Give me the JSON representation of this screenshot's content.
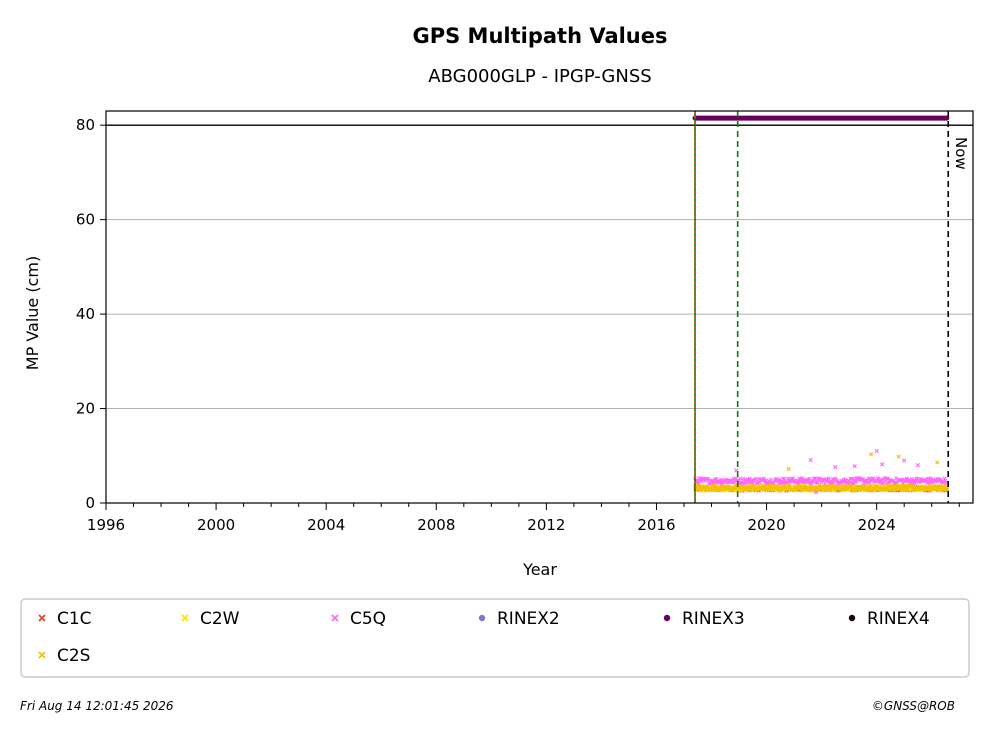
{
  "chart_data": {
    "type": "scatter",
    "title": "GPS Multipath Values",
    "subtitle": "ABG000GLP - IPGP-GNSS",
    "xlabel": "Year",
    "ylabel": "MP Value (cm)",
    "xlim": [
      1996,
      2027.5
    ],
    "ylim": [
      0,
      83
    ],
    "x_ticks": [
      1996,
      2000,
      2004,
      2008,
      2012,
      2016,
      2020,
      2024
    ],
    "y_ticks": [
      0,
      20,
      40,
      60,
      80
    ],
    "grid": "horizontal",
    "series": [
      {
        "name": "C1C",
        "marker": "x",
        "color": "#e8412c",
        "start": 2017.4,
        "end": 2026.55,
        "mean": 3.0,
        "spread": 0.4
      },
      {
        "name": "C2W",
        "marker": "x",
        "color": "#ffe400",
        "start": 2017.4,
        "end": 2026.55,
        "mean": 3.1,
        "spread": 0.5
      },
      {
        "name": "C5Q",
        "marker": "x",
        "color": "#ff66ff",
        "start": 2017.4,
        "end": 2026.55,
        "mean": 4.7,
        "spread": 0.6
      },
      {
        "name": "RINEX2",
        "marker": "dot",
        "color": "#7b7bc0"
      },
      {
        "name": "RINEX3",
        "marker": "dot",
        "color": "#6a0060",
        "start": 2017.4,
        "end": 2026.55,
        "y": 81.5
      },
      {
        "name": "RINEX4",
        "marker": "dot",
        "color": "#1a0010"
      },
      {
        "name": "C2S",
        "marker": "x",
        "color": "#f2c200",
        "start": 2017.4,
        "end": 2026.55,
        "mean": 3.2,
        "spread": 0.5
      }
    ],
    "outliers": [
      {
        "x": 2021.6,
        "y": 9.1
      },
      {
        "x": 2023.8,
        "y": 10.3
      },
      {
        "x": 2024.0,
        "y": 11.0
      },
      {
        "x": 2024.2,
        "y": 8.2
      },
      {
        "x": 2024.8,
        "y": 9.8
      },
      {
        "x": 2025.0,
        "y": 9.0
      },
      {
        "x": 2025.5,
        "y": 8.0
      },
      {
        "x": 2026.2,
        "y": 8.6
      },
      {
        "x": 2022.5,
        "y": 7.6
      },
      {
        "x": 2023.2,
        "y": 7.8
      },
      {
        "x": 2020.8,
        "y": 7.2
      },
      {
        "x": 2018.9,
        "y": 6.9
      },
      {
        "x": 2021.8,
        "y": 2.3
      }
    ],
    "vertical_lines": [
      {
        "x": 2017.4,
        "color": "#008000",
        "style": "solid"
      },
      {
        "x": 2017.4,
        "color": "#e8412c",
        "style": "dotted"
      },
      {
        "x": 2018.95,
        "color": "#008000",
        "style": "dashed"
      },
      {
        "x": 2026.6,
        "color": "#000000",
        "style": "dashed",
        "label": "Now"
      }
    ],
    "horizontal_lines": [
      {
        "y": 80,
        "color": "#000000",
        "style": "solid"
      }
    ],
    "legend": {
      "placement": "bottom",
      "columns": 6
    }
  },
  "footer": {
    "timestamp": "Fri Aug 14 12:01:45 2026",
    "copyright": "©GNSS@ROB"
  }
}
